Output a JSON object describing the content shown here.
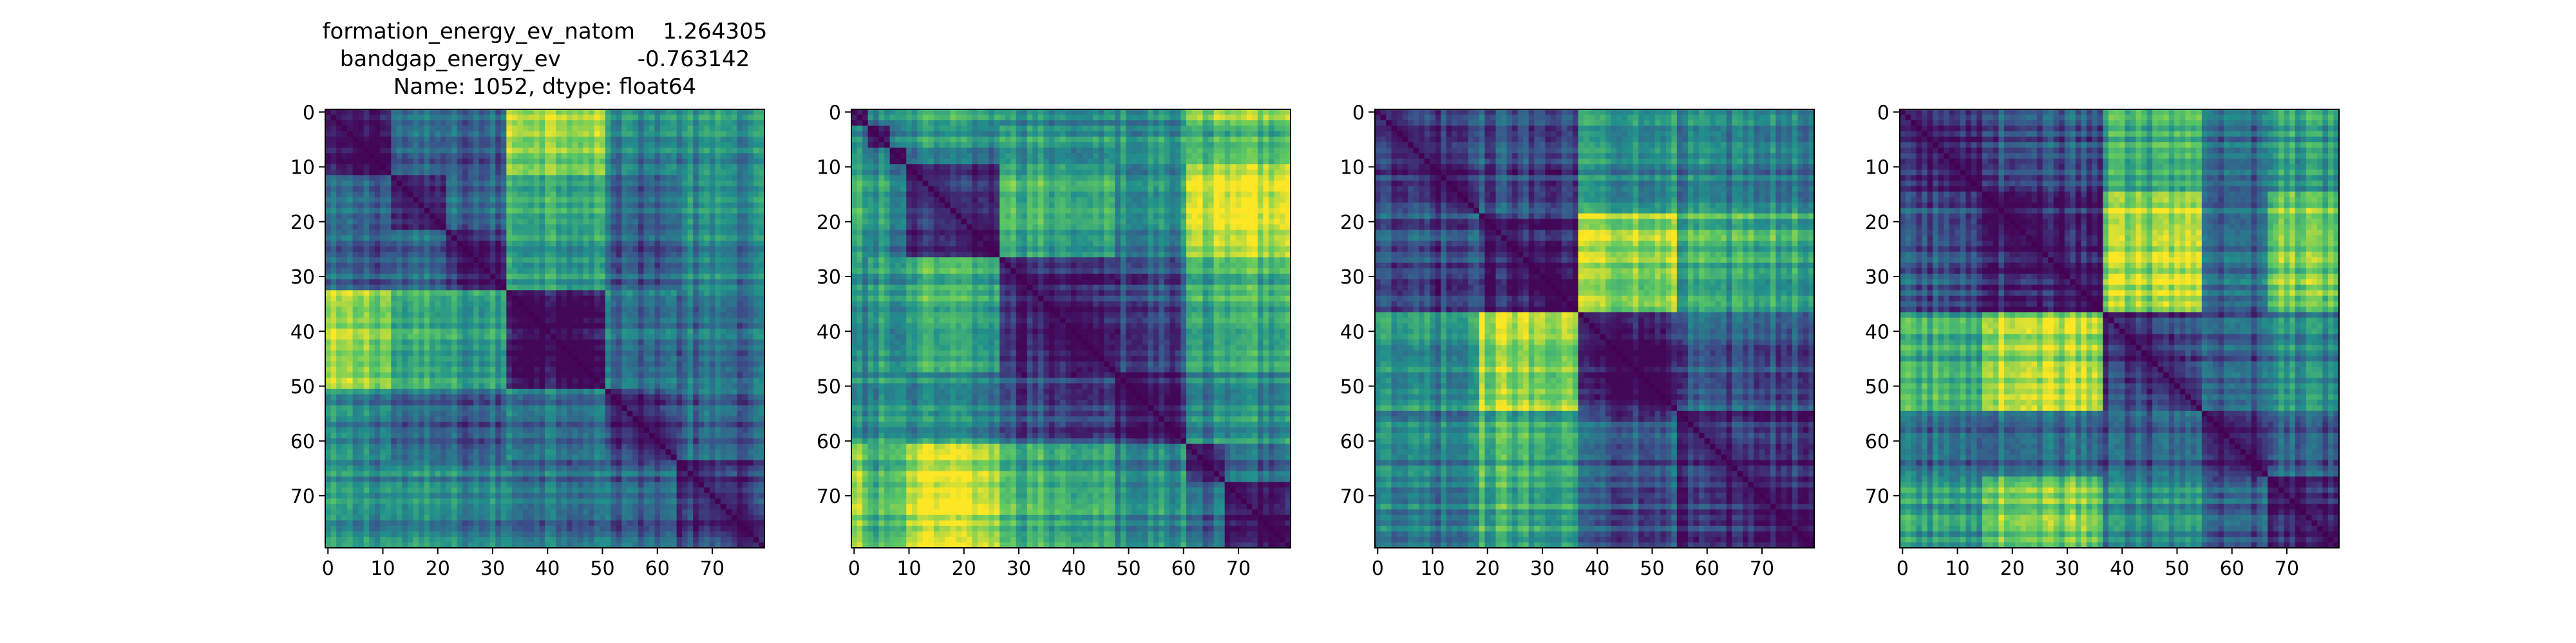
{
  "colormap": {
    "name": "viridis",
    "stops": [
      "#440154",
      "#3b528b",
      "#21918c",
      "#5ec962",
      "#fde725"
    ]
  },
  "chart_data": [
    {
      "type": "heatmap",
      "title_lines": [
        "formation_energy_ev_natom    1.264305",
        "bandgap_energy_ev           -0.763142",
        "Name: 1052, dtype: float64"
      ],
      "size": 80,
      "xlim": [
        0,
        79
      ],
      "ylim": [
        79,
        0
      ],
      "xticks": [
        0,
        10,
        20,
        30,
        40,
        50,
        60,
        70
      ],
      "yticks": [
        0,
        10,
        20,
        30,
        40,
        50,
        60,
        70
      ],
      "groups": [
        0,
        12,
        22,
        33,
        51,
        64
      ],
      "group_levels": [
        [
          0.05,
          0.3,
          0.28,
          0.85,
          0.45,
          0.48
        ],
        [
          0.3,
          0.12,
          0.3,
          0.62,
          0.3,
          0.45
        ],
        [
          0.28,
          0.3,
          0.14,
          0.58,
          0.28,
          0.42
        ],
        [
          0.85,
          0.62,
          0.58,
          0.1,
          0.4,
          0.38
        ],
        [
          0.45,
          0.3,
          0.28,
          0.4,
          0.18,
          0.3
        ],
        [
          0.48,
          0.45,
          0.42,
          0.38,
          0.3,
          0.16
        ]
      ]
    },
    {
      "type": "heatmap",
      "title_lines": [],
      "size": 80,
      "xlim": [
        0,
        79
      ],
      "ylim": [
        79,
        0
      ],
      "xticks": [
        0,
        10,
        20,
        30,
        40,
        50,
        60,
        70
      ],
      "yticks": [
        0,
        10,
        20,
        30,
        40,
        50,
        60,
        70
      ],
      "groups": [
        0,
        3,
        7,
        10,
        27,
        48,
        61,
        68
      ],
      "group_levels": [
        [
          0.08,
          0.4,
          0.5,
          0.55,
          0.45,
          0.45,
          0.75,
          0.8
        ],
        [
          0.4,
          0.1,
          0.45,
          0.5,
          0.55,
          0.5,
          0.6,
          0.65
        ],
        [
          0.5,
          0.45,
          0.1,
          0.4,
          0.5,
          0.55,
          0.7,
          0.75
        ],
        [
          0.55,
          0.5,
          0.4,
          0.12,
          0.6,
          0.45,
          0.88,
          0.92
        ],
        [
          0.45,
          0.55,
          0.5,
          0.6,
          0.14,
          0.22,
          0.6,
          0.65
        ],
        [
          0.45,
          0.5,
          0.55,
          0.45,
          0.22,
          0.12,
          0.45,
          0.5
        ],
        [
          0.75,
          0.6,
          0.7,
          0.88,
          0.6,
          0.45,
          0.14,
          0.35
        ],
        [
          0.8,
          0.65,
          0.75,
          0.92,
          0.65,
          0.5,
          0.35,
          0.1
        ]
      ]
    },
    {
      "type": "heatmap",
      "title_lines": [],
      "size": 80,
      "xlim": [
        0,
        79
      ],
      "ylim": [
        79,
        0
      ],
      "xticks": [
        0,
        10,
        20,
        30,
        40,
        50,
        60,
        70
      ],
      "yticks": [
        0,
        10,
        20,
        30,
        40,
        50,
        60,
        70
      ],
      "groups": [
        0,
        19,
        37,
        55
      ],
      "group_levels": [
        [
          0.14,
          0.22,
          0.5,
          0.4
        ],
        [
          0.22,
          0.14,
          0.88,
          0.62
        ],
        [
          0.5,
          0.88,
          0.12,
          0.28
        ],
        [
          0.4,
          0.62,
          0.28,
          0.14
        ]
      ]
    },
    {
      "type": "heatmap",
      "title_lines": [],
      "size": 80,
      "xlim": [
        0,
        79
      ],
      "ylim": [
        79,
        0
      ],
      "xticks": [
        0,
        10,
        20,
        30,
        40,
        50,
        60,
        70
      ],
      "yticks": [
        0,
        10,
        20,
        30,
        40,
        50,
        60,
        70
      ],
      "groups": [
        0,
        15,
        37,
        55,
        67
      ],
      "group_levels": [
        [
          0.14,
          0.25,
          0.6,
          0.35,
          0.55
        ],
        [
          0.25,
          0.12,
          0.85,
          0.35,
          0.78
        ],
        [
          0.6,
          0.85,
          0.14,
          0.28,
          0.45
        ],
        [
          0.35,
          0.35,
          0.28,
          0.14,
          0.3
        ],
        [
          0.55,
          0.78,
          0.45,
          0.3,
          0.14
        ]
      ]
    }
  ]
}
